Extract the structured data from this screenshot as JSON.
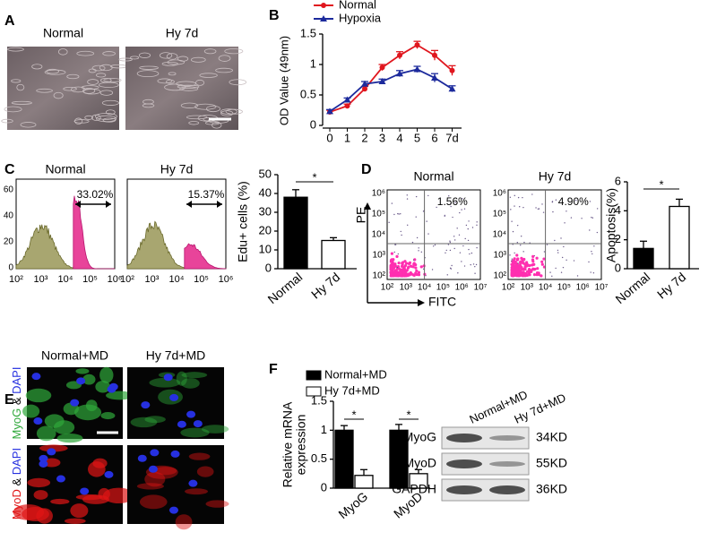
{
  "panel_labels": [
    "A",
    "B",
    "C",
    "D",
    "E",
    "F"
  ],
  "images_a": {
    "labels": [
      "Normal",
      "Hy 7d"
    ]
  },
  "chart_data": [
    {
      "type": "line",
      "categories": [
        "0",
        "1",
        "2",
        "3",
        "4",
        "5",
        "6",
        "7d"
      ],
      "series": [
        {
          "name": "Normal",
          "color": "#e0161e",
          "values": [
            0.22,
            0.32,
            0.6,
            0.95,
            1.15,
            1.32,
            1.15,
            0.9
          ],
          "errors": [
            0.03,
            0.03,
            0.04,
            0.05,
            0.06,
            0.06,
            0.08,
            0.08
          ]
        },
        {
          "name": "Hypoxia",
          "color": "#1c2a9c",
          "values": [
            0.23,
            0.42,
            0.68,
            0.72,
            0.85,
            0.92,
            0.78,
            0.6
          ],
          "errors": [
            0.03,
            0.03,
            0.04,
            0.04,
            0.05,
            0.05,
            0.07,
            0.05
          ]
        }
      ],
      "y_label": "OD Value (49nm)",
      "ylim": [
        0,
        1.5
      ],
      "yticks": [
        0,
        0.5,
        1,
        1.5
      ]
    },
    {
      "type": "bar",
      "categories": [
        "Normal",
        "Hy 7d"
      ],
      "values": [
        38,
        15
      ],
      "errors": [
        4,
        1.5
      ],
      "colors": [
        "#000000",
        "#ffffff"
      ],
      "y_label": "Edu+ cells (%)",
      "ylim": [
        0,
        50
      ],
      "yticks": [
        0,
        10,
        20,
        30,
        40,
        50
      ],
      "annotation": "*"
    },
    {
      "type": "bar",
      "categories": [
        "Normal",
        "Hy 7d"
      ],
      "values": [
        1.4,
        4.3
      ],
      "errors": [
        0.5,
        0.5
      ],
      "colors": [
        "#000000",
        "#ffffff"
      ],
      "y_label": "Apoptosis(%)",
      "ylim": [
        0,
        6
      ],
      "yticks": [
        0,
        2,
        4,
        6
      ],
      "annotation": "*"
    },
    {
      "type": "grouped_bar",
      "categories": [
        "MyoG",
        "MyoD"
      ],
      "series": [
        {
          "name": "Normal+MD",
          "color": "#000000",
          "values": [
            1,
            1
          ],
          "errors": [
            0.08,
            0.1
          ]
        },
        {
          "name": "Hy 7d+MD",
          "color": "#ffffff",
          "values": [
            0.22,
            0.25
          ],
          "errors": [
            0.1,
            0.07
          ]
        }
      ],
      "y_label": [
        "Relative mRNA",
        "expression"
      ],
      "ylim": [
        0,
        1.5
      ],
      "yticks": [
        0,
        0.5,
        1,
        1.5
      ],
      "annotations": [
        "*",
        "*"
      ]
    }
  ],
  "flow_histograms": {
    "plots": [
      {
        "title": "Normal",
        "gate": "33.02%"
      },
      {
        "title": "Hy 7d",
        "gate": "15.37%"
      }
    ],
    "yticks": [
      "60",
      "40",
      "20",
      "0"
    ],
    "xticks": [
      "10²",
      "10³",
      "10⁴",
      "10⁵",
      "10⁶"
    ]
  },
  "scatter_plots": {
    "plots": [
      {
        "title": "Normal",
        "quadrant": "1.56%"
      },
      {
        "title": "Hy 7d",
        "quadrant": "4.90%"
      }
    ],
    "y_axis": "PE",
    "x_axis": "FITC",
    "xticks": [
      "10²",
      "10³",
      "10⁴",
      "10⁵",
      "10⁶",
      "10⁷"
    ],
    "yticks": [
      "10⁶",
      "10⁵",
      "10⁴",
      "10³",
      "10²"
    ]
  },
  "images_e": {
    "labels": [
      "Normal+MD",
      "Hy 7d+MD"
    ],
    "stains": [
      [
        "MyoG",
        " & ",
        "DAPI"
      ],
      [
        "MyoD",
        " & ",
        "DAPI"
      ]
    ]
  },
  "western_blot": {
    "lanes": [
      "Normal+MD",
      "Hy 7d+MD"
    ],
    "bands": [
      {
        "protein": "MyoG",
        "size": "34KD"
      },
      {
        "protein": "MyoD",
        "size": "55KD"
      },
      {
        "protein": "GAPDH",
        "size": "36KD"
      }
    ]
  }
}
